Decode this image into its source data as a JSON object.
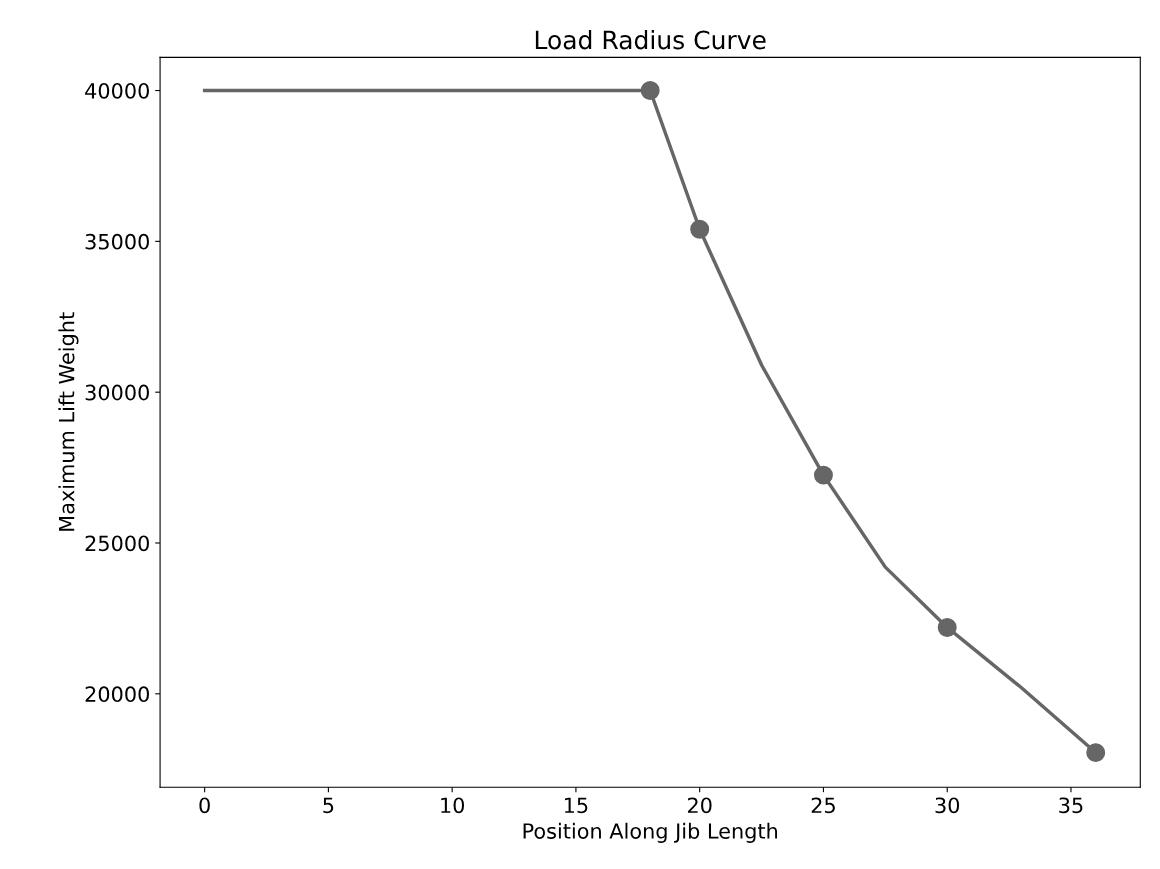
{
  "chart_data": {
    "type": "line",
    "title": "Load Radius Curve",
    "xlabel": "Position Along Jib Length",
    "ylabel": "Maximum Lift Weight",
    "series": [
      {
        "type": "line",
        "color": "#666666",
        "x": [
          0,
          18,
          20,
          22.5,
          25,
          27.5,
          30,
          33,
          36
        ],
        "values": [
          40000,
          40000,
          35400,
          30900,
          27250,
          24200,
          22200,
          20200,
          18050
        ]
      },
      {
        "type": "scatter",
        "color": "#666666",
        "marker": "circle",
        "x": [
          18,
          20,
          25,
          30,
          36
        ],
        "values": [
          40000,
          35400,
          27250,
          22200,
          18050
        ]
      }
    ],
    "xlim": [
      -1.8,
      37.8
    ],
    "xticks": [
      0,
      5,
      10,
      15,
      20,
      25,
      30,
      35
    ],
    "ylim": [
      16900,
      41100
    ],
    "yticks": [
      20000,
      25000,
      30000,
      35000,
      40000
    ],
    "grid": false,
    "legend": false
  }
}
